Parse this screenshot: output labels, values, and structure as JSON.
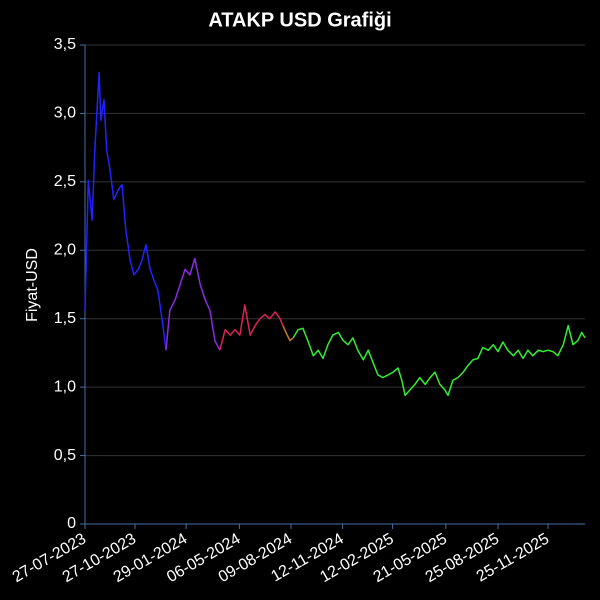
{
  "chart_data": {
    "type": "line",
    "title": "ATAKP USD Grafiği",
    "y_label": "Fiyat-USD",
    "xlim": [
      "27-07-2023",
      "01-02-2026"
    ],
    "xticks": [
      "27-07-2023",
      "27-10-2023",
      "29-01-2024",
      "06-05-2024",
      "09-08-2024",
      "12-11-2024",
      "12-02-2025",
      "21-05-2025",
      "25-08-2025",
      "25-11-2025"
    ],
    "ylim": [
      0,
      3.5
    ],
    "yticks": [
      0,
      {
        "value": 0.5,
        "label": "0,5"
      },
      {
        "value": 1.0,
        "label": "1,0"
      },
      {
        "value": 1.5,
        "label": "1,5"
      },
      {
        "value": 2.0,
        "label": "2,0"
      },
      {
        "value": 2.5,
        "label": "2,5"
      },
      {
        "value": 3.0,
        "label": "3,0"
      },
      {
        "value": 3.5,
        "label": "3,5"
      }
    ],
    "grid": true,
    "series": [
      {
        "color": "#2222ff",
        "x": [
          "27-07-2023",
          "02-08-2023",
          "09-08-2023",
          "14-08-2023",
          "22-08-2023",
          "25-08-2023",
          "31-08-2023",
          "05-09-2023",
          "11-09-2023",
          "18-09-2023",
          "26-09-2023",
          "03-10-2023",
          "10-10-2023",
          "18-10-2023",
          "25-10-2023",
          "02-11-2023",
          "09-11-2023",
          "16-11-2023",
          "24-11-2023",
          "01-12-2023",
          "08-12-2023",
          "16-12-2023",
          "23-12-2023"
        ],
        "values": [
          1.56,
          2.51,
          2.22,
          2.73,
          3.3,
          2.95,
          3.1,
          2.73,
          2.59,
          2.37,
          2.44,
          2.48,
          2.15,
          1.93,
          1.82,
          1.86,
          1.93,
          2.04,
          1.86,
          1.78,
          1.71,
          1.49,
          1.27
        ]
      },
      {
        "color": "#8a2be2",
        "x": [
          "23-12-2023",
          "30-12-2023",
          "09-01-2024",
          "18-01-2024",
          "27-01-2024",
          "05-02-2024",
          "14-02-2024",
          "24-02-2024",
          "04-03-2024",
          "13-03-2024",
          "22-03-2024",
          "31-03-2024"
        ],
        "values": [
          1.27,
          1.56,
          1.64,
          1.75,
          1.86,
          1.82,
          1.94,
          1.75,
          1.64,
          1.56,
          1.34,
          1.27
        ]
      },
      {
        "color": "#dd2255",
        "x": [
          "31-03-2024",
          "10-04-2024",
          "19-04-2024",
          "28-04-2024",
          "07-05-2024",
          "16-05-2024",
          "26-05-2024",
          "04-06-2024",
          "13-06-2024",
          "22-06-2024",
          "01-07-2024",
          "11-07-2024",
          "20-07-2024",
          "25-07-2024"
        ],
        "values": [
          1.27,
          1.42,
          1.38,
          1.42,
          1.38,
          1.6,
          1.38,
          1.45,
          1.5,
          1.53,
          1.5,
          1.55,
          1.5,
          1.45
        ]
      },
      {
        "color": "#cc7722",
        "x": [
          "25-07-2024",
          "02-08-2024",
          "07-08-2024",
          "13-08-2024"
        ],
        "values": [
          1.45,
          1.38,
          1.34,
          1.36
        ]
      },
      {
        "color": "#33ee33",
        "x": [
          "13-08-2024",
          "22-08-2024",
          "31-08-2024",
          "09-09-2024",
          "19-09-2024",
          "28-09-2024",
          "07-10-2024",
          "16-10-2024",
          "25-10-2024",
          "04-11-2024",
          "13-11-2024",
          "22-11-2024",
          "01-12-2024",
          "10-12-2024",
          "20-12-2024",
          "29-12-2024",
          "07-01-2025",
          "16-01-2025",
          "25-01-2025",
          "04-02-2025",
          "13-02-2025",
          "22-02-2025",
          "01-03-2025",
          "07-03-2025",
          "16-03-2025",
          "25-03-2025",
          "03-04-2025",
          "13-04-2025",
          "22-04-2025",
          "01-05-2025",
          "10-05-2025",
          "19-05-2025",
          "25-05-2025",
          "03-06-2025",
          "12-06-2025",
          "22-06-2025",
          "01-07-2025",
          "10-07-2025",
          "19-07-2025",
          "28-07-2025",
          "07-08-2025",
          "16-08-2025",
          "25-08-2025",
          "03-09-2025",
          "12-09-2025",
          "22-09-2025",
          "01-10-2025",
          "10-10-2025",
          "19-10-2025",
          "28-10-2025",
          "07-11-2025",
          "16-11-2025",
          "25-11-2025",
          "04-12-2025",
          "13-12-2025",
          "23-12-2025",
          "01-01-2026",
          "10-01-2026",
          "19-01-2026",
          "26-01-2026",
          "01-02-2026"
        ],
        "values": [
          1.36,
          1.42,
          1.43,
          1.34,
          1.23,
          1.27,
          1.21,
          1.31,
          1.38,
          1.4,
          1.34,
          1.31,
          1.36,
          1.27,
          1.2,
          1.27,
          1.18,
          1.09,
          1.07,
          1.09,
          1.11,
          1.14,
          1.05,
          0.94,
          0.98,
          1.02,
          1.07,
          1.02,
          1.07,
          1.11,
          1.02,
          0.98,
          0.94,
          1.05,
          1.07,
          1.11,
          1.16,
          1.2,
          1.21,
          1.29,
          1.27,
          1.31,
          1.26,
          1.33,
          1.27,
          1.23,
          1.27,
          1.21,
          1.27,
          1.23,
          1.27,
          1.26,
          1.27,
          1.26,
          1.23,
          1.31,
          1.45,
          1.31,
          1.34,
          1.4,
          1.36
        ]
      }
    ]
  }
}
